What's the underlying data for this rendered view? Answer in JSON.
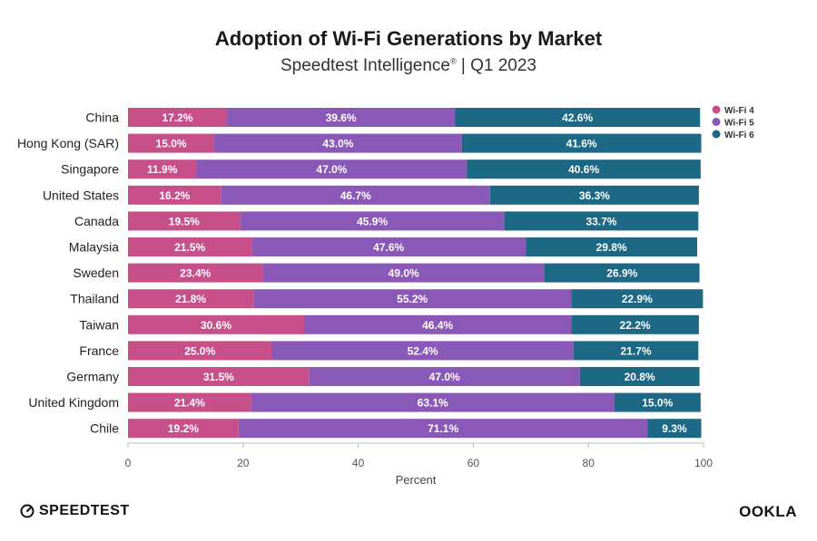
{
  "header": {
    "title": "Adoption of Wi-Fi Generations by Market",
    "subtitle_main": "Speedtest Intelligence",
    "subtitle_reg": "®",
    "subtitle_tail": " | Q1 2023"
  },
  "chart_data": {
    "type": "bar",
    "orientation": "horizontal",
    "stacked": true,
    "categories": [
      "China",
      "Hong Kong (SAR)",
      "Singapore",
      "United States",
      "Canada",
      "Malaysia",
      "Sweden",
      "Thailand",
      "Taiwan",
      "France",
      "Germany",
      "United Kingdom",
      "Chile"
    ],
    "series": [
      {
        "name": "Wi-Fi 4",
        "color": "#c8508a",
        "values": [
          17.2,
          15.0,
          11.9,
          16.2,
          19.5,
          21.5,
          23.4,
          21.8,
          30.6,
          25.0,
          31.5,
          21.4,
          19.2
        ]
      },
      {
        "name": "Wi-Fi 5",
        "color": "#8a58b6",
        "values": [
          39.6,
          43.0,
          47.0,
          46.7,
          45.9,
          47.6,
          49.0,
          55.2,
          46.4,
          52.4,
          47.0,
          63.1,
          71.1
        ]
      },
      {
        "name": "Wi-Fi 6",
        "color": "#1d6884",
        "values": [
          42.6,
          41.6,
          40.6,
          36.3,
          33.7,
          29.8,
          26.9,
          22.9,
          22.2,
          21.7,
          20.8,
          15.0,
          9.3
        ]
      }
    ],
    "xlabel": "Percent",
    "xlim": [
      0,
      100
    ],
    "xticks": [
      0,
      20,
      40,
      60,
      80,
      100
    ],
    "legend_position": "top-right"
  },
  "footer": {
    "left_brand": "SPEEDTEST",
    "right_brand": "OOKLA"
  }
}
